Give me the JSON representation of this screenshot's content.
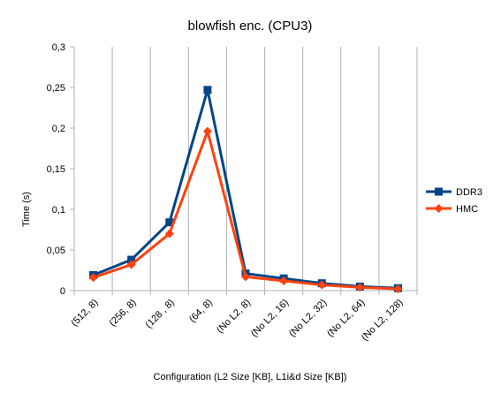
{
  "chart_data": {
    "type": "line",
    "title": "blowfish enc. (CPU3)",
    "xlabel": "Configuration (L2 Size [KB], L1i&d Size [KB])",
    "ylabel": "Time (s)",
    "ylim": [
      0,
      0.3
    ],
    "yticks": [
      "0",
      "0,05",
      "0,1",
      "0,15",
      "0,2",
      "0,25",
      "0,3"
    ],
    "ytick_values": [
      0,
      0.05,
      0.1,
      0.15,
      0.2,
      0.25,
      0.3
    ],
    "grid": "vertical lines at category boundaries",
    "legend_position": "right",
    "categories": [
      "(512, 8)",
      "(256, 8)",
      "(128 , 8)",
      "(64, 8)",
      "(No L2, 8)",
      "(No L2, 16)",
      "(No L2, 32)",
      "(No L2, 64)",
      "(No L2, 128)"
    ],
    "series": [
      {
        "name": "DDR3",
        "color": "#004586",
        "marker": "square",
        "values": [
          0.019,
          0.038,
          0.084,
          0.247,
          0.021,
          0.015,
          0.009,
          0.005,
          0.003
        ]
      },
      {
        "name": "HMC",
        "color": "#ff420e",
        "marker": "diamond",
        "values": [
          0.016,
          0.032,
          0.07,
          0.196,
          0.017,
          0.012,
          0.007,
          0.004,
          0.002
        ]
      }
    ]
  }
}
